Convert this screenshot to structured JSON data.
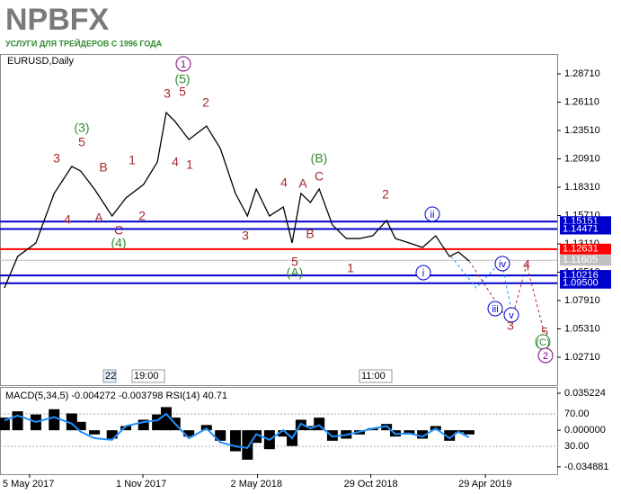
{
  "logo": {
    "name": "NPBFX",
    "tagline": "УСЛУГИ ДЛЯ ТРЕЙДЕРОВ С 1996 ГОДА"
  },
  "chart_data": [
    {
      "type": "line",
      "title": "EURUSD,Daily",
      "color": "#000000",
      "x": [
        -40,
        -19,
        10,
        39,
        67,
        81,
        103,
        131,
        153,
        181,
        203,
        217,
        231,
        253,
        281,
        303,
        327,
        346,
        360,
        381,
        403,
        417,
        431,
        446,
        460,
        481,
        503,
        524,
        545,
        567,
        581,
        603,
        624,
        645,
        667,
        681,
        698
      ],
      "values": [
        1.0907,
        1.1195,
        1.1319,
        1.1773,
        1.2021,
        1.198,
        1.1814,
        1.1567,
        1.1732,
        1.1856,
        1.2062,
        1.2516,
        1.2434,
        1.2268,
        1.2392,
        1.2186,
        1.1773,
        1.1567,
        1.1814,
        1.1567,
        1.1649,
        1.1319,
        1.1773,
        1.1691,
        1.1814,
        1.1484,
        1.136,
        1.136,
        1.1385,
        1.1526,
        1.136,
        1.1319,
        1.1278,
        1.1385,
        1.1195,
        1.1237,
        1.1154
      ],
      "xlim": [
        -47,
        838
      ],
      "xticks": [
        {
          "value": 0,
          "label": "5 May 2017"
        },
        {
          "value": 180,
          "label": "1 Nov 2017"
        },
        {
          "value": 362,
          "label": "2 May 2018"
        },
        {
          "value": 542,
          "label": "29 Oct 2018"
        },
        {
          "value": 724,
          "label": "29 Apr 2019"
        }
      ],
      "ylim": [
        1.0015,
        1.3053
      ],
      "yticks": [
        {
          "value": 1.2871,
          "label": "1.28710"
        },
        {
          "value": 1.2611,
          "label": "1.26110"
        },
        {
          "value": 1.2351,
          "label": "1.23510"
        },
        {
          "value": 1.2091,
          "label": "1.20910"
        },
        {
          "value": 1.1831,
          "label": "1.18310"
        },
        {
          "value": 1.1571,
          "label": "1.15710"
        },
        {
          "value": 1.1311,
          "label": "1.13110"
        },
        {
          "value": 1.1051,
          "label": "1.10510"
        },
        {
          "value": 1.0791,
          "label": "1.07910"
        },
        {
          "value": 1.0531,
          "label": "1.05310"
        },
        {
          "value": 1.0271,
          "label": "1.02710"
        }
      ],
      "levels": [
        {
          "value": 1.15151,
          "color": "#0000cd"
        },
        {
          "value": 1.14471,
          "color": "#0000cd"
        },
        {
          "value": 1.12631,
          "color": "#ff0000"
        },
        {
          "value": 1.11605,
          "color": "#c0c0c0"
        },
        {
          "value": 1.10216,
          "color": "#0000cd"
        },
        {
          "value": 1.095,
          "label": "1.09500",
          "color": "#0000cd"
        }
      ],
      "time_markers": [
        "22",
        "19:00",
        "11:00"
      ],
      "annotations": [
        "1",
        "(5)",
        "3",
        "5",
        "2",
        "(3)",
        "5",
        "3",
        "B",
        "1",
        "4",
        "1",
        "4",
        "A",
        "2",
        "C",
        "(4)",
        "(B)",
        "4",
        "A",
        "C",
        "3",
        "5",
        "B",
        "(A)",
        "2",
        "ii",
        "1",
        "i",
        "iv",
        "4",
        "iii",
        "v",
        "3",
        "5",
        "(C)",
        "2"
      ]
    },
    {
      "type": "bar",
      "title": "MACD(5,34,5) -0.004272 -0.003798 RSI(14) 40.71",
      "x": [
        -40,
        -19,
        10,
        39,
        67,
        81,
        103,
        131,
        153,
        181,
        203,
        217,
        231,
        253,
        281,
        303,
        327,
        346,
        360,
        381,
        403,
        417,
        431,
        446,
        460,
        481,
        503,
        524,
        545,
        567,
        581,
        603,
        624,
        645,
        667,
        681,
        698
      ],
      "series": [
        {
          "type": "bar",
          "color": "#000000",
          "values": [
            0.012,
            0.018,
            0.015,
            0.02,
            0.016,
            0.008,
            -0.004,
            -0.008,
            0.004,
            0.01,
            0.015,
            0.022,
            0.012,
            -0.006,
            0.005,
            -0.01,
            -0.02,
            -0.028,
            -0.012,
            -0.018,
            -0.006,
            -0.015,
            0.01,
            0.004,
            0.012,
            -0.01,
            -0.008,
            -0.004,
            0.002,
            0.006,
            -0.006,
            -0.004,
            -0.008,
            0.004,
            -0.01,
            -0.002,
            -0.004
          ]
        },
        {
          "type": "line",
          "axis": "y2",
          "color": "#1e90ff",
          "values": [
            62,
            68,
            60,
            66,
            58,
            48,
            40,
            38,
            55,
            60,
            62,
            70,
            58,
            40,
            52,
            35,
            30,
            28,
            45,
            38,
            50,
            40,
            58,
            52,
            56,
            42,
            44,
            48,
            52,
            55,
            45,
            46,
            42,
            52,
            40,
            48,
            41
          ]
        }
      ],
      "xlim": [
        -47,
        838
      ],
      "ylim": [
        -0.0418,
        0.0412
      ],
      "yticks": [
        0.035224,
        {
          "value": 0,
          "label": "0.000000"
        },
        -0.034881
      ],
      "y2lim": [
        -4.4,
        103.3
      ],
      "y2ticks": [
        {
          "value": 70,
          "label": "70.00"
        },
        {
          "value": 30,
          "label": "30.00"
        }
      ]
    }
  ]
}
